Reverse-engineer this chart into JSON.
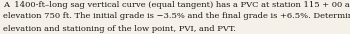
{
  "text_lines": [
    "A  1400-ft–long sag vertical curve (equal tangent) has a PVC at station 115 + 00 and",
    "elevation 750 ft. The initial grade is −3.5% and the final grade is +6.5%. Determine the",
    "elevation and stationing of the low point, PVI, and PVT."
  ],
  "font_size": 6.0,
  "font_family": "serif",
  "text_color": "#1a1a1a",
  "background_color": "#f5f0e8",
  "fig_width": 3.5,
  "fig_height": 0.34,
  "dpi": 100
}
